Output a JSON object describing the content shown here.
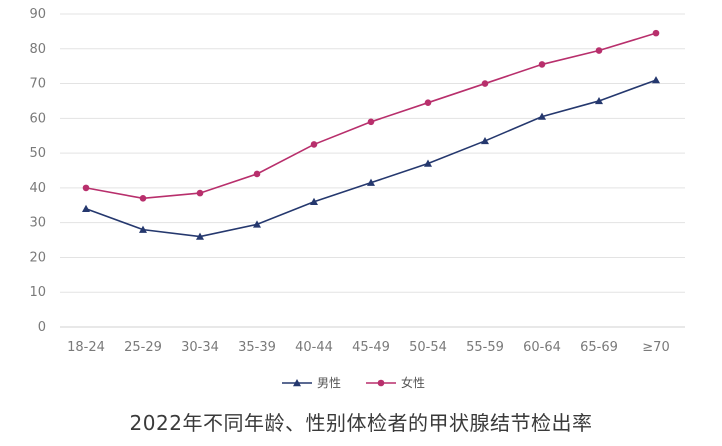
{
  "chart_data": {
    "type": "line",
    "title": "2022年不同年龄、性别体检者的甲状腺结节检出率",
    "xlabel": "",
    "ylabel": "",
    "ylim": [
      0,
      90
    ],
    "yticks": [
      0,
      10,
      20,
      30,
      40,
      50,
      60,
      70,
      80,
      90
    ],
    "grid": true,
    "legend_position": "bottom",
    "categories": [
      "18-24",
      "25-29",
      "30-34",
      "35-39",
      "40-44",
      "45-49",
      "50-54",
      "55-59",
      "60-64",
      "65-69",
      "≥70"
    ],
    "series": [
      {
        "name": "男性",
        "color": "#25386e",
        "marker": "triangle",
        "values": [
          34,
          28,
          26,
          29.5,
          36,
          41.5,
          47,
          53.5,
          60.5,
          65,
          71
        ]
      },
      {
        "name": "女性",
        "color": "#b82f6c",
        "marker": "circle",
        "values": [
          40,
          37,
          38.5,
          44,
          52.5,
          59,
          64.5,
          70,
          75.5,
          79.5,
          84.5
        ]
      }
    ]
  }
}
